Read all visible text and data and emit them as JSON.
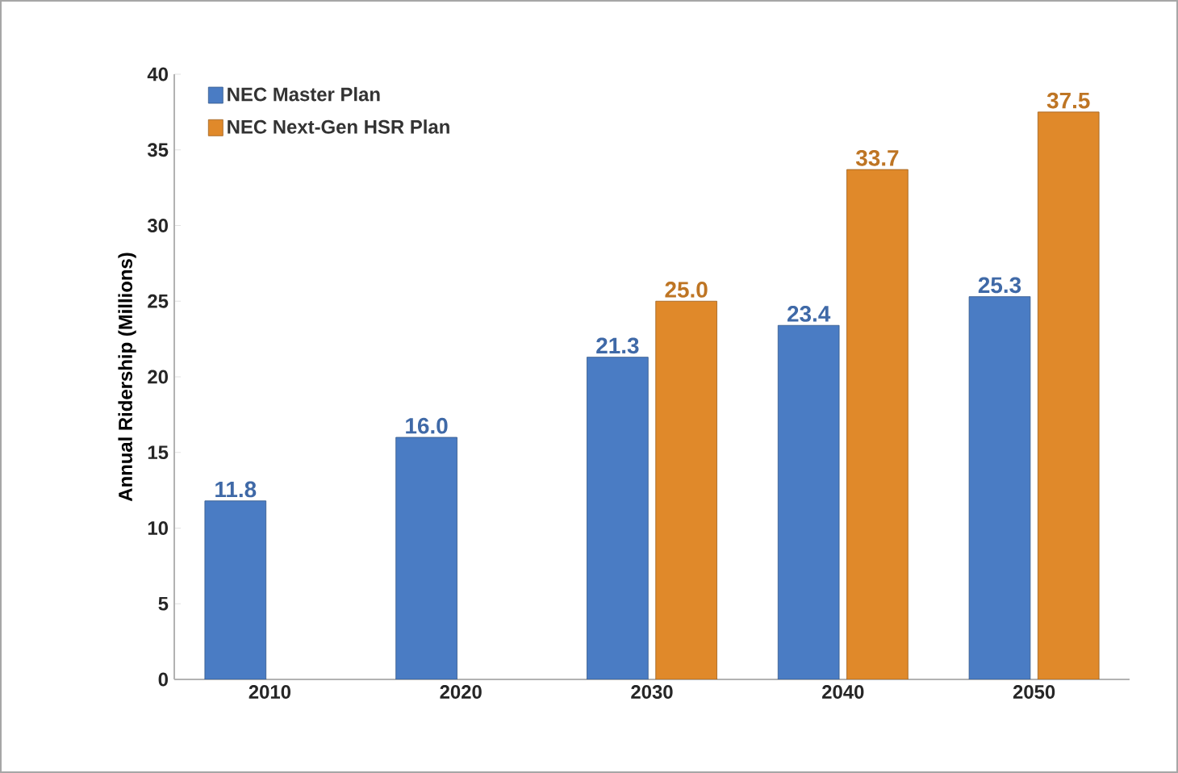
{
  "chart_data": {
    "type": "bar",
    "ylabel": "Annual Ridership (Millions)",
    "categories": [
      "2010",
      "2020",
      "2030",
      "2040",
      "2050"
    ],
    "series": [
      {
        "name": "NEC Master Plan",
        "color": "#4a7cc4",
        "values": [
          11.8,
          16.0,
          21.3,
          23.4,
          25.3
        ],
        "value_labels": [
          "11.8",
          "16.0",
          "21.3",
          "23.4",
          "25.3"
        ]
      },
      {
        "name": "NEC Next-Gen HSR Plan",
        "color": "#e0892a",
        "values": [
          null,
          null,
          25.0,
          33.7,
          37.5
        ],
        "value_labels": [
          null,
          null,
          "25.0",
          "33.7",
          "37.5"
        ]
      }
    ],
    "ylim": [
      0,
      40
    ],
    "yticks": [
      0,
      5,
      10,
      15,
      20,
      25,
      30,
      35,
      40
    ],
    "legend": "top left",
    "grid": false
  }
}
